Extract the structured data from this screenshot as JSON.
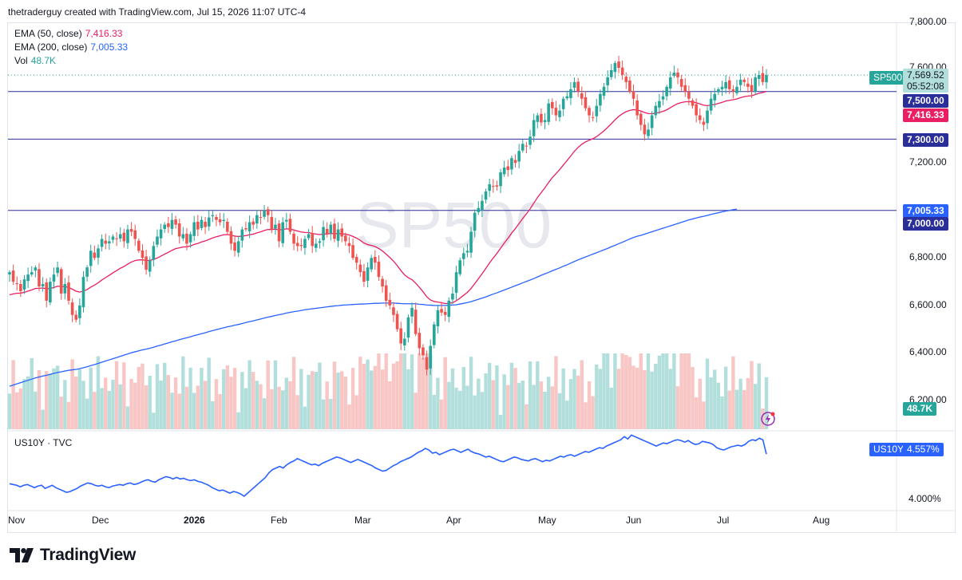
{
  "header": {
    "attribution": "thetraderguy created with TradingView.com, Jul 15, 2026 11:07 UTC-4"
  },
  "legend": {
    "ema50_label": "EMA (50, close)",
    "ema50_value": "7,416.33",
    "ema200_label": "EMA (200, close)",
    "ema200_value": "7,005.33",
    "vol_label": "Vol",
    "vol_value": "48.7K"
  },
  "watermark": "SP500",
  "price_axis": {
    "ticks": [
      {
        "label": "7,800.00",
        "value": 7800
      },
      {
        "label": "7,600.00",
        "value": 7600
      },
      {
        "label": "7,200.00",
        "value": 7200
      },
      {
        "label": "6,800.00",
        "value": 6800
      },
      {
        "label": "6,600.00",
        "value": 6600
      },
      {
        "label": "6,400.00",
        "value": 6400
      },
      {
        "label": "6,200.00",
        "value": 6200
      }
    ]
  },
  "tags": {
    "symbol": "SP500",
    "last_price": "7,569.52",
    "countdown": "05:52:08",
    "line_7500": "7,500.00",
    "ema50": "7,416.33",
    "line_7300": "7,300.00",
    "ema200": "7,005.33",
    "line_7000": "7,000.00",
    "volume": "48.7K"
  },
  "lower_pane": {
    "legend": "US10Y · TVC",
    "symbol": "US10Y",
    "value_tag": "4.557%",
    "ticks": [
      {
        "label": "4.000%",
        "value": 4.0
      }
    ]
  },
  "time_axis": [
    "Nov",
    "Dec",
    "2026",
    "Feb",
    "Mar",
    "Apr",
    "May",
    "Jun",
    "Jul",
    "Aug"
  ],
  "brand": "TradingView",
  "colors": {
    "up": "#26a69a",
    "down": "#ef5350",
    "ema50": "#e91e63",
    "ema200": "#2962ff",
    "hline": "#2a2e99",
    "us10y": "#2962ff"
  },
  "chart_data": [
    {
      "type": "candlestick",
      "title": "SP500",
      "y_unit": "index points",
      "ylim": [
        6150,
        7850
      ],
      "xlim": [
        "2025-10-27",
        "2026-08-20"
      ],
      "horizontal_lines": [
        7500,
        7300,
        7000
      ],
      "last_close": 7569.52,
      "ema50_last": 7416.33,
      "ema200_last": 7005.33,
      "volume_last": "48.7K",
      "closes": [
        6740,
        6700,
        6690,
        6660,
        6710,
        6730,
        6740,
        6760,
        6680,
        6690,
        6620,
        6700,
        6730,
        6760,
        6650,
        6690,
        6620,
        6560,
        6540,
        6600,
        6720,
        6760,
        6830,
        6800,
        6840,
        6880,
        6860,
        6870,
        6890,
        6880,
        6900,
        6870,
        6920,
        6910,
        6880,
        6830,
        6800,
        6750,
        6790,
        6850,
        6890,
        6920,
        6940,
        6930,
        6960,
        6940,
        6890,
        6900,
        6860,
        6900,
        6950,
        6920,
        6960,
        6930,
        6970,
        6980,
        6960,
        6950,
        6960,
        6910,
        6860,
        6830,
        6870,
        6920,
        6920,
        6950,
        6940,
        6980,
        6970,
        7000,
        6980,
        6920,
        6940,
        6870,
        6950,
        6960,
        6910,
        6860,
        6850,
        6850,
        6880,
        6900,
        6850,
        6860,
        6870,
        6930,
        6900,
        6940,
        6880,
        6920,
        6890,
        6870,
        6850,
        6800,
        6780,
        6740,
        6700,
        6760,
        6800,
        6780,
        6720,
        6680,
        6620,
        6600,
        6560,
        6500,
        6440,
        6460,
        6550,
        6590,
        6480,
        6420,
        6390,
        6330,
        6430,
        6520,
        6580,
        6570,
        6560,
        6620,
        6650,
        6740,
        6790,
        6820,
        6830,
        6910,
        6990,
        7010,
        7040,
        7080,
        7110,
        7100,
        7100,
        7160,
        7180,
        7170,
        7220,
        7200,
        7250,
        7280,
        7270,
        7310,
        7380,
        7400,
        7370,
        7380,
        7450,
        7430,
        7400,
        7420,
        7470,
        7480,
        7510,
        7540,
        7500,
        7470,
        7430,
        7400,
        7390,
        7440,
        7490,
        7520,
        7560,
        7590,
        7620,
        7600,
        7570,
        7540,
        7500,
        7470,
        7400,
        7360,
        7320,
        7340,
        7400,
        7440,
        7460,
        7480,
        7520,
        7560,
        7580,
        7560,
        7520,
        7500,
        7470,
        7440,
        7400,
        7380,
        7360,
        7420,
        7470,
        7490,
        7510,
        7520,
        7540,
        7510,
        7500,
        7520,
        7550,
        7540,
        7520,
        7500,
        7560,
        7570,
        7540,
        7569.52
      ],
      "ema50": [
        6645,
        6655,
        6663,
        6669,
        6675,
        6682,
        6688,
        6695,
        6697,
        6699,
        6700,
        6701,
        6703,
        6705,
        6704,
        6704,
        6702,
        6700,
        6697,
        6695,
        6698,
        6702,
        6708,
        6711,
        6716,
        6722,
        6727,
        6733,
        6738,
        6743,
        6749,
        6753,
        6758,
        6763,
        6767,
        6770,
        6772,
        6772,
        6773,
        6776,
        6779,
        6784,
        6789,
        6794,
        6800,
        6804,
        6808,
        6812,
        6815,
        6818,
        6823,
        6827,
        6832,
        6836,
        6840,
        6844,
        6848,
        6852,
        6856,
        6859,
        6859,
        6858,
        6859,
        6862,
        6864,
        6867,
        6870,
        6874,
        6878,
        6882,
        6885,
        6887,
        6889,
        6888,
        6889,
        6890,
        6891,
        6890,
        6889,
        6889,
        6888,
        6888,
        6887,
        6887,
        6886,
        6888,
        6888,
        6890,
        6890,
        6890,
        6890,
        6889,
        6888,
        6885,
        6881,
        6876,
        6869,
        6864,
        6861,
        6857,
        6850,
        6842,
        6832,
        6822,
        6810,
        6796,
        6780,
        6767,
        6758,
        6750,
        6738,
        6724,
        6710,
        6694,
        6682,
        6675,
        6672,
        6669,
        6667,
        6665,
        6666,
        6670,
        6675,
        6681,
        6688,
        6697,
        6710,
        7040,
        7046,
        7052,
        7059,
        7064,
        7070,
        7077,
        7084,
        7091,
        7098,
        7104,
        7111,
        7119,
        7126,
        7134,
        7144,
        7154,
        7163,
        7172,
        7182,
        7191,
        7199,
        7207,
        7217,
        7226,
        7236,
        7247,
        7257,
        7265,
        7273,
        7280,
        7287,
        7294,
        7302,
        7310,
        7319,
        7329,
        7339,
        7349,
        7358,
        7366,
        7373,
        7379,
        7382,
        7386,
        7388,
        7391,
        7396,
        7401,
        7406,
        7411,
        7415,
        7420,
        7425,
        7430,
        7434,
        7437,
        7440,
        7441,
        7443,
        7444,
        7443,
        7444,
        7446,
        7448,
        7450,
        7452,
        7454,
        7455,
        7456,
        7458,
        7461,
        7463,
        7465,
        7466,
        7470,
        7473,
        7475,
        7416.33
      ],
      "ema200": [
        6260,
        6265,
        6270,
        6275,
        6280,
        6285,
        6290,
        6295,
        6299,
        6303,
        6306,
        6310,
        6314,
        6318,
        6321,
        6324,
        6327,
        6329,
        6331,
        6334,
        6338,
        6342,
        6347,
        6351,
        6356,
        6361,
        6366,
        6371,
        6376,
        6381,
        6386,
        6391,
        6396,
        6401,
        6405,
        6409,
        6413,
        6416,
        6420,
        6424,
        6429,
        6433,
        6438,
        6442,
        6447,
        6451,
        6456,
        6460,
        6464,
        6468,
        6473,
        6477,
        6481,
        6485,
        6490,
        6494,
        6498,
        6502,
        6506,
        6510,
        6513,
        6517,
        6520,
        6524,
        6528,
        6532,
        6535,
        6539,
        6543,
        6547,
        6551,
        6554,
        6558,
        6561,
        6564,
        6568,
        6571,
        6574,
        6576,
        6579,
        6582,
        6584,
        6586,
        6588,
        6590,
        6592,
        6594,
        6596,
        6598,
        6599,
        6601,
        6602,
        6603,
        6604,
        6605,
        6606,
        6606,
        6607,
        6608,
        6609,
        6609,
        6610,
        6610,
        6610,
        6610,
        6609,
        6608,
        6607,
        6607,
        6607,
        6607,
        6605,
        6604,
        6602,
        6601,
        6600,
        6600,
        6600,
        6600,
        6601,
        6602,
        6603,
        6606,
        6609,
        6612,
        6616,
        6621,
        6626,
        6631,
        6636,
        6642,
        6648,
        6653,
        6659,
        6665,
        6671,
        6677,
        6683,
        6689,
        6695,
        6701,
        6707,
        6713,
        6720,
        6727,
        6733,
        6739,
        6746,
        6752,
        6758,
        6765,
        6771,
        6778,
        6785,
        6792,
        6798,
        6804,
        6810,
        6816,
        6822,
        6828,
        6834,
        6840,
        6847,
        6853,
        6860,
        6866,
        6873,
        6880,
        6886,
        6891,
        6895,
        6900,
        6905,
        6910,
        6915,
        6920,
        6925,
        6930,
        6935,
        6940,
        6945,
        6950,
        6955,
        6960,
        6964,
        6968,
        6972,
        6975,
        6979,
        6983,
        6987,
        6990,
        6994,
        6997,
        7000,
        7003,
        7005.33
      ],
      "volume_relative": "bars scaled 0-1, last bar 48.7K"
    },
    {
      "type": "line",
      "title": "US10Y · TVC",
      "y_unit": "percent",
      "last_value": 4.557,
      "tick_labels": [
        "4.000%"
      ],
      "values": [
        4.18,
        4.17,
        4.16,
        4.14,
        4.16,
        4.17,
        4.15,
        4.13,
        4.15,
        4.16,
        4.12,
        4.14,
        4.16,
        4.13,
        4.11,
        4.09,
        4.07,
        4.08,
        4.1,
        4.12,
        4.15,
        4.17,
        4.19,
        4.18,
        4.16,
        4.15,
        4.16,
        4.14,
        4.13,
        4.15,
        4.16,
        4.17,
        4.16,
        4.18,
        4.19,
        4.17,
        4.18,
        4.2,
        4.22,
        4.23,
        4.21,
        4.2,
        4.23,
        4.25,
        4.27,
        4.26,
        4.24,
        4.26,
        4.24,
        4.25,
        4.23,
        4.22,
        4.23,
        4.21,
        4.2,
        4.18,
        4.16,
        4.13,
        4.11,
        4.09,
        4.1,
        4.08,
        4.06,
        4.08,
        4.07,
        4.05,
        4.02,
        4.06,
        4.1,
        4.14,
        4.18,
        4.22,
        4.26,
        4.32,
        4.36,
        4.38,
        4.4,
        4.38,
        4.42,
        4.45,
        4.47,
        4.5,
        4.48,
        4.46,
        4.44,
        4.42,
        4.43,
        4.41,
        4.44,
        4.46,
        4.48,
        4.5,
        4.52,
        4.51,
        4.49,
        4.47,
        4.45,
        4.47,
        4.49,
        4.47,
        4.45,
        4.43,
        4.41,
        4.38,
        4.36,
        4.34,
        4.35,
        4.38,
        4.41,
        4.43,
        4.46,
        4.48,
        4.5,
        4.52,
        4.55,
        4.58,
        4.6,
        4.63,
        4.61,
        4.57,
        4.58,
        4.55,
        4.57,
        4.59,
        4.61,
        4.62,
        4.6,
        4.58,
        4.6,
        4.62,
        4.59,
        4.57,
        4.56,
        4.54,
        4.52,
        4.53,
        4.51,
        4.49,
        4.47,
        4.46,
        4.48,
        4.5,
        4.52,
        4.51,
        4.49,
        4.48,
        4.47,
        4.49,
        4.5,
        4.48,
        4.46,
        4.48,
        4.47,
        4.49,
        4.51,
        4.53,
        4.52,
        4.54,
        4.55,
        4.53,
        4.55,
        4.57,
        4.59,
        4.58,
        4.6,
        4.62,
        4.64,
        4.63,
        4.66,
        4.68,
        4.7,
        4.72,
        4.74,
        4.78,
        4.75,
        4.8,
        4.78,
        4.76,
        4.74,
        4.72,
        4.7,
        4.68,
        4.66,
        4.68,
        4.7,
        4.69,
        4.71,
        4.73,
        4.74,
        4.73,
        4.71,
        4.73,
        4.7,
        4.68,
        4.69,
        4.72,
        4.71,
        4.7,
        4.68,
        4.64,
        4.62,
        4.61,
        4.63,
        4.65,
        4.66,
        4.67,
        4.66,
        4.68,
        4.72,
        4.74,
        4.73,
        4.76,
        4.74,
        4.557
      ]
    }
  ]
}
